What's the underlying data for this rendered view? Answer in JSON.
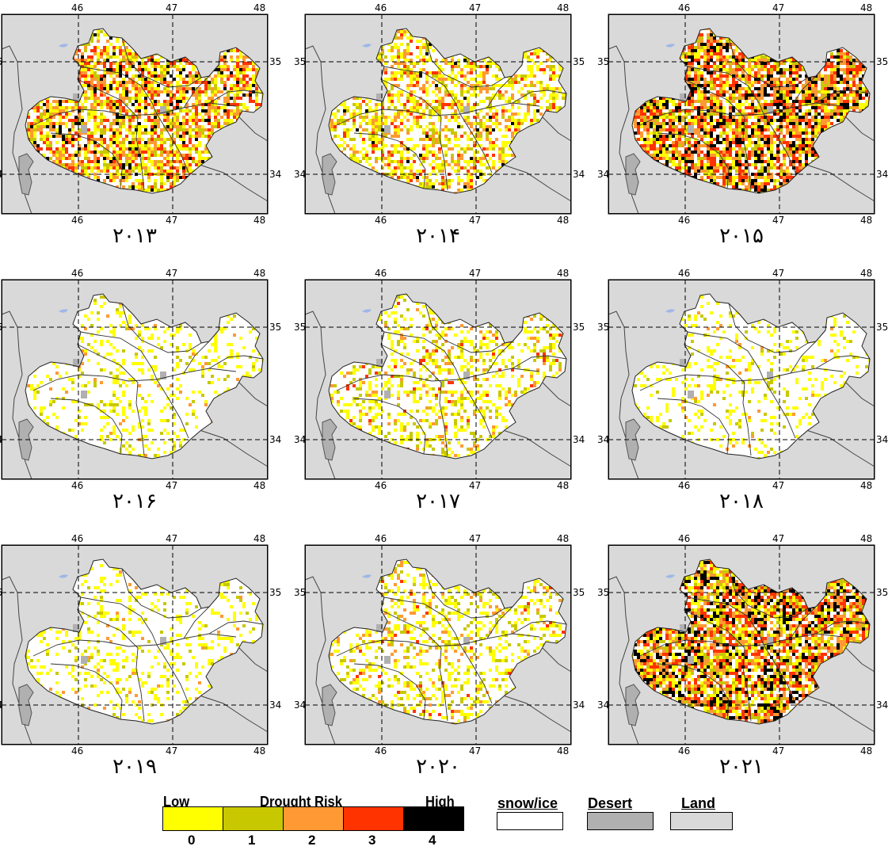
{
  "colors": {
    "land": "#d9d9d9",
    "desert": "#b0b0b0",
    "snow": "#ffffff",
    "risk": [
      "#ffff00",
      "#c8c800",
      "#ff9933",
      "#ff3300",
      "#000000"
    ]
  },
  "panels": [
    {
      "year": "۲۰۱۳",
      "risk_level": 3,
      "lat_top": "35",
      "lat_bottom": "34",
      "lon_left": "46",
      "lon_mid": "47",
      "lon_right": "48"
    },
    {
      "year": "۲۰۱۴",
      "risk_level": 2,
      "lat_top": "35",
      "lat_bottom": "34",
      "lon_left": "46",
      "lon_mid": "47",
      "lon_right": "48"
    },
    {
      "year": "۲۰۱۵",
      "risk_level": 4,
      "lat_top": "35",
      "lat_bottom": "34",
      "lon_left": "46",
      "lon_mid": "47",
      "lon_right": "48"
    },
    {
      "year": "۲۰۱۶",
      "risk_level": 0,
      "lat_top": "35",
      "lat_bottom": "34",
      "lon_left": "46",
      "lon_mid": "47",
      "lon_right": "48"
    },
    {
      "year": "۲۰۱۷",
      "risk_level": 1,
      "lat_top": "35",
      "lat_bottom": "34",
      "lon_left": "46",
      "lon_mid": "47",
      "lon_right": "48"
    },
    {
      "year": "۲۰۱۸",
      "risk_level": 0,
      "lat_top": "35",
      "lat_bottom": "34",
      "lon_left": "46",
      "lon_mid": "47",
      "lon_right": "48"
    },
    {
      "year": "۲۰۱۹",
      "risk_level": 0,
      "lat_top": "35",
      "lat_bottom": "34",
      "lon_left": "46",
      "lon_mid": "47",
      "lon_right": "48"
    },
    {
      "year": "۲۰۲۰",
      "risk_level": 1,
      "lat_top": "35",
      "lat_bottom": "34",
      "lon_left": "46",
      "lon_mid": "47",
      "lon_right": "48"
    },
    {
      "year": "۲۰۲۱",
      "risk_level": 4,
      "lat_top": "35",
      "lat_bottom": "34",
      "lon_left": "46",
      "lon_mid": "47",
      "lon_right": "48"
    }
  ],
  "legend": {
    "low_label": "Low",
    "title": "Drought Risk",
    "high_label": "High",
    "classes": [
      "0",
      "1",
      "2",
      "3",
      "4"
    ],
    "snow_label": "snow/ice",
    "desert_label": "Desert",
    "land_label": "Land"
  }
}
